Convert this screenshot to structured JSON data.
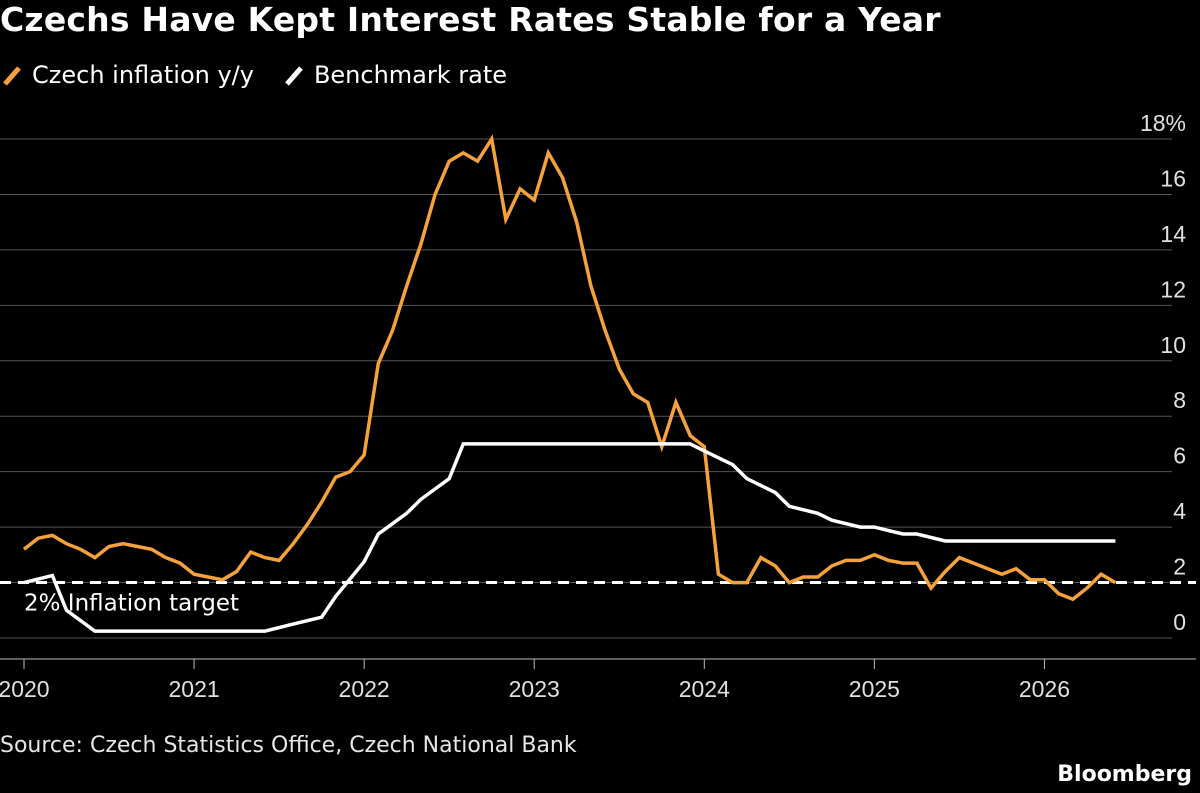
{
  "header": {
    "title": "Czechs Have Kept Interest Rates Stable for a Year"
  },
  "footer": {
    "source": "Source: Czech Statistics Office, Czech National Bank",
    "brand": "Bloomberg"
  },
  "colors": {
    "inflation": "#f5a23c",
    "benchmark": "#ffffff",
    "grid": "#555555",
    "background": "#000000"
  },
  "chart_data": {
    "type": "line",
    "title": "Czechs Have Kept Interest Rates Stable for a Year",
    "legend_position": "top-left",
    "grid": true,
    "x_range": [
      2020.0,
      2026.75
    ],
    "ylim": [
      0,
      18
    ],
    "y_ticks": [
      0,
      2,
      4,
      6,
      8,
      10,
      12,
      14,
      16,
      18
    ],
    "y_tick_labels": [
      "0",
      "2",
      "4",
      "6",
      "8",
      "10",
      "12",
      "14",
      "16",
      "18%"
    ],
    "x_ticks": [
      2020,
      2021,
      2022,
      2023,
      2024,
      2025,
      2026
    ],
    "x_tick_labels": [
      "2020",
      "2021",
      "2022",
      "2023",
      "2024",
      "2025",
      "2026"
    ],
    "reference_line": {
      "value": 2,
      "label": "2% Inflation target",
      "style": "dashed"
    },
    "series": [
      {
        "name": "Czech inflation y/y",
        "key": "inflation",
        "points": [
          [
            2020.0,
            3.2
          ],
          [
            2020.083,
            3.6
          ],
          [
            2020.167,
            3.7
          ],
          [
            2020.25,
            3.4
          ],
          [
            2020.333,
            3.2
          ],
          [
            2020.417,
            2.9
          ],
          [
            2020.5,
            3.3
          ],
          [
            2020.583,
            3.4
          ],
          [
            2020.667,
            3.3
          ],
          [
            2020.75,
            3.2
          ],
          [
            2020.833,
            2.9
          ],
          [
            2020.917,
            2.7
          ],
          [
            2021.0,
            2.3
          ],
          [
            2021.083,
            2.2
          ],
          [
            2021.167,
            2.1
          ],
          [
            2021.25,
            2.4
          ],
          [
            2021.333,
            3.1
          ],
          [
            2021.417,
            2.9
          ],
          [
            2021.5,
            2.8
          ],
          [
            2021.583,
            3.4
          ],
          [
            2021.667,
            4.1
          ],
          [
            2021.75,
            4.9
          ],
          [
            2021.833,
            5.8
          ],
          [
            2021.917,
            6.0
          ],
          [
            2022.0,
            6.6
          ],
          [
            2022.083,
            9.9
          ],
          [
            2022.167,
            11.1
          ],
          [
            2022.25,
            12.7
          ],
          [
            2022.333,
            14.2
          ],
          [
            2022.417,
            16.0
          ],
          [
            2022.5,
            17.2
          ],
          [
            2022.583,
            17.5
          ],
          [
            2022.667,
            17.2
          ],
          [
            2022.75,
            18.0
          ],
          [
            2022.833,
            15.1
          ],
          [
            2022.917,
            16.2
          ],
          [
            2023.0,
            15.8
          ],
          [
            2023.083,
            17.5
          ],
          [
            2023.167,
            16.6
          ],
          [
            2023.25,
            15.0
          ],
          [
            2023.333,
            12.7
          ],
          [
            2023.417,
            11.1
          ],
          [
            2023.5,
            9.7
          ],
          [
            2023.583,
            8.8
          ],
          [
            2023.667,
            8.5
          ],
          [
            2023.75,
            6.9
          ],
          [
            2023.833,
            8.5
          ],
          [
            2023.917,
            7.3
          ],
          [
            2024.0,
            6.9
          ],
          [
            2024.083,
            2.3
          ],
          [
            2024.167,
            2.0
          ],
          [
            2024.25,
            2.0
          ],
          [
            2024.333,
            2.9
          ],
          [
            2024.417,
            2.6
          ],
          [
            2024.5,
            2.0
          ],
          [
            2024.583,
            2.2
          ],
          [
            2024.667,
            2.2
          ],
          [
            2024.75,
            2.6
          ],
          [
            2024.833,
            2.8
          ],
          [
            2024.917,
            2.8
          ],
          [
            2025.0,
            3.0
          ],
          [
            2025.083,
            2.8
          ],
          [
            2025.167,
            2.7
          ],
          [
            2025.25,
            2.7
          ],
          [
            2025.333,
            1.8
          ],
          [
            2025.417,
            2.4
          ],
          [
            2025.5,
            2.9
          ],
          [
            2025.583,
            2.7
          ],
          [
            2025.667,
            2.5
          ],
          [
            2025.75,
            2.3
          ],
          [
            2025.833,
            2.5
          ],
          [
            2025.917,
            2.1
          ],
          [
            2026.0,
            2.1
          ],
          [
            2026.083,
            1.6
          ],
          [
            2026.167,
            1.4
          ],
          [
            2026.25,
            1.8
          ],
          [
            2026.333,
            2.3
          ],
          [
            2026.417,
            2.0
          ]
        ]
      },
      {
        "name": "Benchmark rate",
        "key": "benchmark",
        "points": [
          [
            2020.0,
            2.0
          ],
          [
            2020.167,
            2.25
          ],
          [
            2020.25,
            1.0
          ],
          [
            2020.417,
            0.25
          ],
          [
            2021.417,
            0.25
          ],
          [
            2021.583,
            0.5
          ],
          [
            2021.75,
            0.75
          ],
          [
            2021.833,
            1.5
          ],
          [
            2022.0,
            2.75
          ],
          [
            2022.083,
            3.75
          ],
          [
            2022.25,
            4.5
          ],
          [
            2022.333,
            5.0
          ],
          [
            2022.5,
            5.75
          ],
          [
            2022.583,
            7.0
          ],
          [
            2023.917,
            7.0
          ],
          [
            2024.0,
            6.75
          ],
          [
            2024.167,
            6.25
          ],
          [
            2024.25,
            5.75
          ],
          [
            2024.417,
            5.25
          ],
          [
            2024.5,
            4.75
          ],
          [
            2024.667,
            4.5
          ],
          [
            2024.75,
            4.25
          ],
          [
            2024.917,
            4.0
          ],
          [
            2025.0,
            4.0
          ],
          [
            2025.167,
            3.75
          ],
          [
            2025.25,
            3.75
          ],
          [
            2025.417,
            3.5
          ],
          [
            2026.417,
            3.5
          ]
        ]
      }
    ]
  }
}
